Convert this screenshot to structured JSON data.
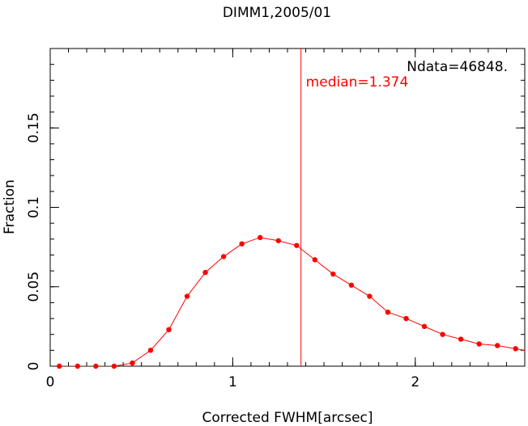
{
  "chart_data": {
    "type": "line",
    "title": "DIMM1,2005/01",
    "xlabel": "Corrected FWHM[arcsec]",
    "ylabel": "Fraction",
    "xlim": [
      0,
      2.6
    ],
    "ylim": [
      0,
      0.2
    ],
    "x_ticks": [
      {
        "value": 0,
        "label": "0"
      },
      {
        "value": 1,
        "label": "1"
      },
      {
        "value": 2,
        "label": "2"
      }
    ],
    "y_ticks": [
      {
        "value": 0,
        "label": "0"
      },
      {
        "value": 0.05,
        "label": "0.05"
      },
      {
        "value": 0.1,
        "label": "0.1"
      },
      {
        "value": 0.15,
        "label": "0.15"
      }
    ],
    "x_minor_step": 0.1,
    "y_minor_step": 0.01,
    "grid": false,
    "series": [
      {
        "color": "#ff0000",
        "x": [
          0.05,
          0.15,
          0.25,
          0.35,
          0.45,
          0.55,
          0.65,
          0.75,
          0.85,
          0.95,
          1.05,
          1.15,
          1.25,
          1.35,
          1.45,
          1.55,
          1.65,
          1.75,
          1.85,
          1.95,
          2.05,
          2.15,
          2.25,
          2.35,
          2.45,
          2.55,
          2.65
        ],
        "y": [
          0.0,
          0.0,
          0.0,
          0.0,
          0.002,
          0.01,
          0.023,
          0.044,
          0.059,
          0.069,
          0.077,
          0.081,
          0.079,
          0.076,
          0.067,
          0.058,
          0.051,
          0.044,
          0.034,
          0.03,
          0.025,
          0.02,
          0.017,
          0.014,
          0.013,
          0.011,
          0.009
        ]
      }
    ],
    "median_line": {
      "value": 1.374,
      "label": "median=1.374",
      "color": "#ff0000"
    },
    "annotations": [
      {
        "text": "Ndata=46848.",
        "color": "#000000"
      }
    ]
  }
}
